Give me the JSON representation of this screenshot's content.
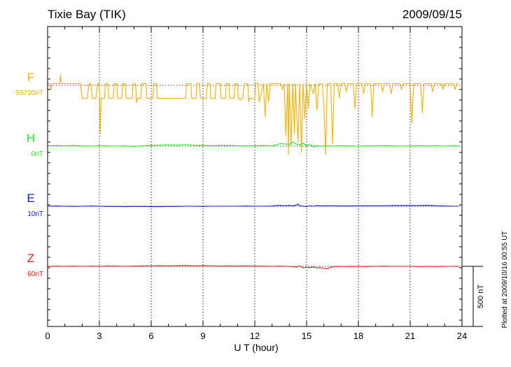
{
  "header": {
    "station": "Tixie Bay (TIK)",
    "date": "2009/09/15"
  },
  "footer": {
    "plotted_note": "Plotted at 2009/10/16 00:55 UT",
    "scale_label": "500 nT"
  },
  "colors": {
    "F": "#f5b000",
    "H": "#22ee22",
    "E": "#1414c8",
    "Z": "#e01818",
    "axis": "#000000",
    "grid": "#000000"
  },
  "chart_data": {
    "type": "line",
    "xlabel": "U T (hour)",
    "ylabel": "",
    "xlim": [
      0,
      24
    ],
    "x_ticks": [
      0,
      3,
      6,
      9,
      12,
      15,
      18,
      21,
      24
    ],
    "x_tick_labels": [
      "0",
      "3",
      "6",
      "9",
      "12",
      "15",
      "18",
      "21",
      "24"
    ],
    "grid": "dotted",
    "scale_bar_nT": 500,
    "series": [
      {
        "name": "F",
        "baseline_label": "59720nT",
        "baseline_nT": 59720,
        "points": [
          [
            0.0,
            8
          ],
          [
            0.1,
            8
          ],
          [
            0.2,
            -22
          ],
          [
            0.25,
            8
          ],
          [
            0.7,
            8
          ],
          [
            0.75,
            50
          ],
          [
            0.8,
            8
          ],
          [
            1.0,
            8
          ],
          [
            1.9,
            8
          ],
          [
            2.0,
            -62
          ],
          [
            2.3,
            -62
          ],
          [
            2.4,
            8
          ],
          [
            2.5,
            8
          ],
          [
            2.6,
            -62
          ],
          [
            2.8,
            -62
          ],
          [
            2.9,
            8
          ],
          [
            3.0,
            8
          ],
          [
            3.05,
            -230
          ],
          [
            3.1,
            -62
          ],
          [
            3.3,
            -62
          ],
          [
            3.35,
            8
          ],
          [
            3.5,
            8
          ],
          [
            3.55,
            -62
          ],
          [
            3.8,
            -62
          ],
          [
            3.85,
            8
          ],
          [
            4.0,
            8
          ],
          [
            4.05,
            -62
          ],
          [
            4.3,
            -62
          ],
          [
            4.35,
            8
          ],
          [
            4.5,
            8
          ],
          [
            4.55,
            -62
          ],
          [
            4.9,
            -62
          ],
          [
            4.95,
            8
          ],
          [
            5.1,
            8
          ],
          [
            5.15,
            -82
          ],
          [
            5.2,
            -62
          ],
          [
            5.4,
            -62
          ],
          [
            5.45,
            8
          ],
          [
            5.7,
            8
          ],
          [
            5.75,
            -62
          ],
          [
            6.1,
            -62
          ],
          [
            6.15,
            8
          ],
          [
            6.3,
            8
          ],
          [
            6.35,
            -62
          ],
          [
            6.5,
            -62
          ],
          [
            8.0,
            -62
          ],
          [
            8.05,
            8
          ],
          [
            8.3,
            8
          ],
          [
            8.35,
            -62
          ],
          [
            8.6,
            -62
          ],
          [
            8.65,
            8
          ],
          [
            8.8,
            8
          ],
          [
            8.85,
            -62
          ],
          [
            9.2,
            -62
          ],
          [
            9.25,
            8
          ],
          [
            9.4,
            8
          ],
          [
            9.45,
            -62
          ],
          [
            9.7,
            -62
          ],
          [
            9.75,
            8
          ],
          [
            10.0,
            8
          ],
          [
            10.05,
            -62
          ],
          [
            10.3,
            -62
          ],
          [
            10.35,
            8
          ],
          [
            10.5,
            8
          ],
          [
            10.55,
            -62
          ],
          [
            10.8,
            -62
          ],
          [
            10.85,
            8
          ],
          [
            11.0,
            8
          ],
          [
            11.05,
            -62
          ],
          [
            11.2,
            -70
          ],
          [
            11.3,
            -62
          ],
          [
            11.4,
            8
          ],
          [
            11.6,
            8
          ],
          [
            11.65,
            -80
          ],
          [
            11.7,
            -62
          ],
          [
            12.0,
            -62
          ],
          [
            12.05,
            8
          ],
          [
            12.2,
            8
          ],
          [
            12.25,
            -80
          ],
          [
            12.3,
            -62
          ],
          [
            12.5,
            8
          ],
          [
            12.6,
            -150
          ],
          [
            12.7,
            8
          ],
          [
            12.8,
            -80
          ],
          [
            12.9,
            8
          ],
          [
            13.0,
            8
          ],
          [
            13.5,
            8
          ],
          [
            13.6,
            -20
          ],
          [
            13.7,
            8
          ],
          [
            13.8,
            -240
          ],
          [
            13.9,
            8
          ],
          [
            13.95,
            -330
          ],
          [
            14.0,
            8
          ],
          [
            14.1,
            -290
          ],
          [
            14.2,
            8
          ],
          [
            14.3,
            -230
          ],
          [
            14.35,
            8
          ],
          [
            14.5,
            -270
          ],
          [
            14.6,
            8
          ],
          [
            14.7,
            -320
          ],
          [
            14.8,
            8
          ],
          [
            14.9,
            -160
          ],
          [
            15.0,
            8
          ],
          [
            15.1,
            -110
          ],
          [
            15.2,
            8
          ],
          [
            15.4,
            -40
          ],
          [
            15.5,
            8
          ],
          [
            15.6,
            -120
          ],
          [
            15.7,
            8
          ],
          [
            15.9,
            8
          ],
          [
            16.0,
            -90
          ],
          [
            16.1,
            -330
          ],
          [
            16.2,
            8
          ],
          [
            16.4,
            8
          ],
          [
            16.5,
            -280
          ],
          [
            16.6,
            8
          ],
          [
            16.8,
            8
          ],
          [
            16.9,
            -60
          ],
          [
            17.0,
            8
          ],
          [
            17.2,
            8
          ],
          [
            17.3,
            -30
          ],
          [
            17.4,
            8
          ],
          [
            17.7,
            8
          ],
          [
            17.8,
            -110
          ],
          [
            17.9,
            8
          ],
          [
            18.2,
            8
          ],
          [
            18.3,
            -40
          ],
          [
            18.4,
            8
          ],
          [
            18.7,
            8
          ],
          [
            18.8,
            -150
          ],
          [
            18.9,
            8
          ],
          [
            19.3,
            8
          ],
          [
            19.4,
            -30
          ],
          [
            19.5,
            8
          ],
          [
            19.8,
            8
          ],
          [
            19.9,
            -40
          ],
          [
            20.0,
            8
          ],
          [
            20.4,
            8
          ],
          [
            20.5,
            -20
          ],
          [
            20.6,
            8
          ],
          [
            21.0,
            8
          ],
          [
            21.1,
            -180
          ],
          [
            21.2,
            8
          ],
          [
            21.6,
            8
          ],
          [
            21.7,
            -130
          ],
          [
            21.8,
            8
          ],
          [
            22.2,
            8
          ],
          [
            22.3,
            -30
          ],
          [
            22.4,
            8
          ],
          [
            22.8,
            8
          ],
          [
            22.9,
            -20
          ],
          [
            23.0,
            8
          ],
          [
            23.5,
            8
          ],
          [
            23.6,
            -20
          ],
          [
            23.7,
            8
          ],
          [
            23.8,
            8
          ]
        ]
      },
      {
        "name": "H",
        "baseline_label": "0nT",
        "baseline_nT": 0,
        "points": [
          [
            0.0,
            2
          ],
          [
            0.5,
            3
          ],
          [
            1.0,
            1
          ],
          [
            1.5,
            3
          ],
          [
            2.0,
            1
          ],
          [
            2.5,
            0
          ],
          [
            3.0,
            2
          ],
          [
            3.5,
            1
          ],
          [
            4.0,
            0
          ],
          [
            4.5,
            2
          ],
          [
            5.0,
            -2
          ],
          [
            5.5,
            1
          ],
          [
            6.0,
            3
          ],
          [
            6.5,
            5
          ],
          [
            7.0,
            6
          ],
          [
            7.5,
            5
          ],
          [
            8.0,
            7
          ],
          [
            8.5,
            4
          ],
          [
            9.0,
            3
          ],
          [
            9.5,
            2
          ],
          [
            10.0,
            4
          ],
          [
            10.5,
            3
          ],
          [
            11.0,
            2
          ],
          [
            11.5,
            1
          ],
          [
            12.0,
            2
          ],
          [
            12.5,
            3
          ],
          [
            13.0,
            1
          ],
          [
            13.5,
            12
          ],
          [
            14.0,
            8
          ],
          [
            14.2,
            20
          ],
          [
            14.4,
            10
          ],
          [
            14.6,
            6
          ],
          [
            14.8,
            14
          ],
          [
            15.0,
            2
          ],
          [
            15.2,
            8
          ],
          [
            15.4,
            -4
          ],
          [
            15.6,
            3
          ],
          [
            15.8,
            -1
          ],
          [
            16.0,
            2
          ],
          [
            16.5,
            0
          ],
          [
            17.0,
            2
          ],
          [
            17.5,
            1
          ],
          [
            18.0,
            0
          ],
          [
            18.5,
            2
          ],
          [
            19.0,
            1
          ],
          [
            19.5,
            2
          ],
          [
            20.0,
            1
          ],
          [
            20.5,
            0
          ],
          [
            21.0,
            1
          ],
          [
            21.5,
            2
          ],
          [
            22.0,
            1
          ],
          [
            22.5,
            2
          ],
          [
            23.0,
            0
          ],
          [
            23.5,
            2
          ],
          [
            23.8,
            1
          ]
        ]
      },
      {
        "name": "E",
        "baseline_label": "10nT",
        "baseline_nT": 10,
        "points": [
          [
            0.0,
            0
          ],
          [
            0.5,
            1
          ],
          [
            1.0,
            0
          ],
          [
            1.5,
            -1
          ],
          [
            2.0,
            0
          ],
          [
            2.5,
            1
          ],
          [
            3.0,
            0
          ],
          [
            3.5,
            -1
          ],
          [
            4.0,
            -1
          ],
          [
            4.5,
            -2
          ],
          [
            5.0,
            -1
          ],
          [
            5.5,
            -1
          ],
          [
            6.0,
            -2
          ],
          [
            6.5,
            -2
          ],
          [
            7.0,
            -1
          ],
          [
            7.5,
            -1
          ],
          [
            8.0,
            0
          ],
          [
            8.5,
            0
          ],
          [
            9.0,
            -1
          ],
          [
            9.5,
            0
          ],
          [
            10.0,
            0
          ],
          [
            10.5,
            0
          ],
          [
            11.0,
            0
          ],
          [
            11.5,
            1
          ],
          [
            12.0,
            0
          ],
          [
            12.5,
            0
          ],
          [
            13.0,
            1
          ],
          [
            13.4,
            4
          ],
          [
            13.7,
            2
          ],
          [
            14.0,
            4
          ],
          [
            14.2,
            1
          ],
          [
            14.4,
            6
          ],
          [
            14.5,
            10
          ],
          [
            14.6,
            2
          ],
          [
            14.8,
            0
          ],
          [
            15.0,
            -2
          ],
          [
            15.2,
            2
          ],
          [
            15.4,
            0
          ],
          [
            15.6,
            3
          ],
          [
            15.8,
            1
          ],
          [
            16.0,
            2
          ],
          [
            16.5,
            2
          ],
          [
            17.0,
            1
          ],
          [
            17.5,
            1
          ],
          [
            18.0,
            2
          ],
          [
            18.5,
            2
          ],
          [
            19.0,
            2
          ],
          [
            19.5,
            2
          ],
          [
            20.0,
            3
          ],
          [
            20.5,
            3
          ],
          [
            21.0,
            3
          ],
          [
            21.5,
            3
          ],
          [
            22.0,
            4
          ],
          [
            22.5,
            2
          ],
          [
            23.0,
            1
          ],
          [
            23.5,
            0
          ],
          [
            23.8,
            0
          ]
        ]
      },
      {
        "name": "Z",
        "baseline_label": "60nT",
        "baseline_nT": 60,
        "points": [
          [
            0.0,
            0
          ],
          [
            0.5,
            1
          ],
          [
            1.0,
            0
          ],
          [
            1.5,
            1
          ],
          [
            2.0,
            0
          ],
          [
            2.5,
            1
          ],
          [
            3.0,
            0
          ],
          [
            3.5,
            2
          ],
          [
            4.0,
            1
          ],
          [
            4.5,
            0
          ],
          [
            5.0,
            1
          ],
          [
            5.5,
            2
          ],
          [
            6.0,
            2
          ],
          [
            6.5,
            3
          ],
          [
            7.0,
            2
          ],
          [
            7.5,
            3
          ],
          [
            8.0,
            4
          ],
          [
            8.5,
            2
          ],
          [
            9.0,
            3
          ],
          [
            9.5,
            2
          ],
          [
            10.0,
            1
          ],
          [
            10.5,
            2
          ],
          [
            11.0,
            1
          ],
          [
            11.5,
            2
          ],
          [
            12.0,
            1
          ],
          [
            12.5,
            1
          ],
          [
            13.0,
            0
          ],
          [
            13.4,
            1
          ],
          [
            13.8,
            0
          ],
          [
            14.0,
            0
          ],
          [
            14.2,
            -2
          ],
          [
            14.4,
            -4
          ],
          [
            14.6,
            2
          ],
          [
            14.8,
            -8
          ],
          [
            15.0,
            -4
          ],
          [
            15.2,
            -6
          ],
          [
            15.4,
            -3
          ],
          [
            15.6,
            -8
          ],
          [
            15.8,
            -6
          ],
          [
            16.0,
            -10
          ],
          [
            16.2,
            -12
          ],
          [
            16.4,
            -4
          ],
          [
            16.6,
            -2
          ],
          [
            17.0,
            0
          ],
          [
            17.5,
            -1
          ],
          [
            18.0,
            0
          ],
          [
            18.5,
            -1
          ],
          [
            19.0,
            0
          ],
          [
            19.5,
            1
          ],
          [
            20.0,
            0
          ],
          [
            20.5,
            0
          ],
          [
            21.0,
            0
          ],
          [
            21.5,
            -1
          ],
          [
            22.0,
            0
          ],
          [
            22.5,
            -1
          ],
          [
            23.0,
            0
          ],
          [
            23.5,
            0
          ],
          [
            23.8,
            -1
          ]
        ]
      }
    ]
  }
}
